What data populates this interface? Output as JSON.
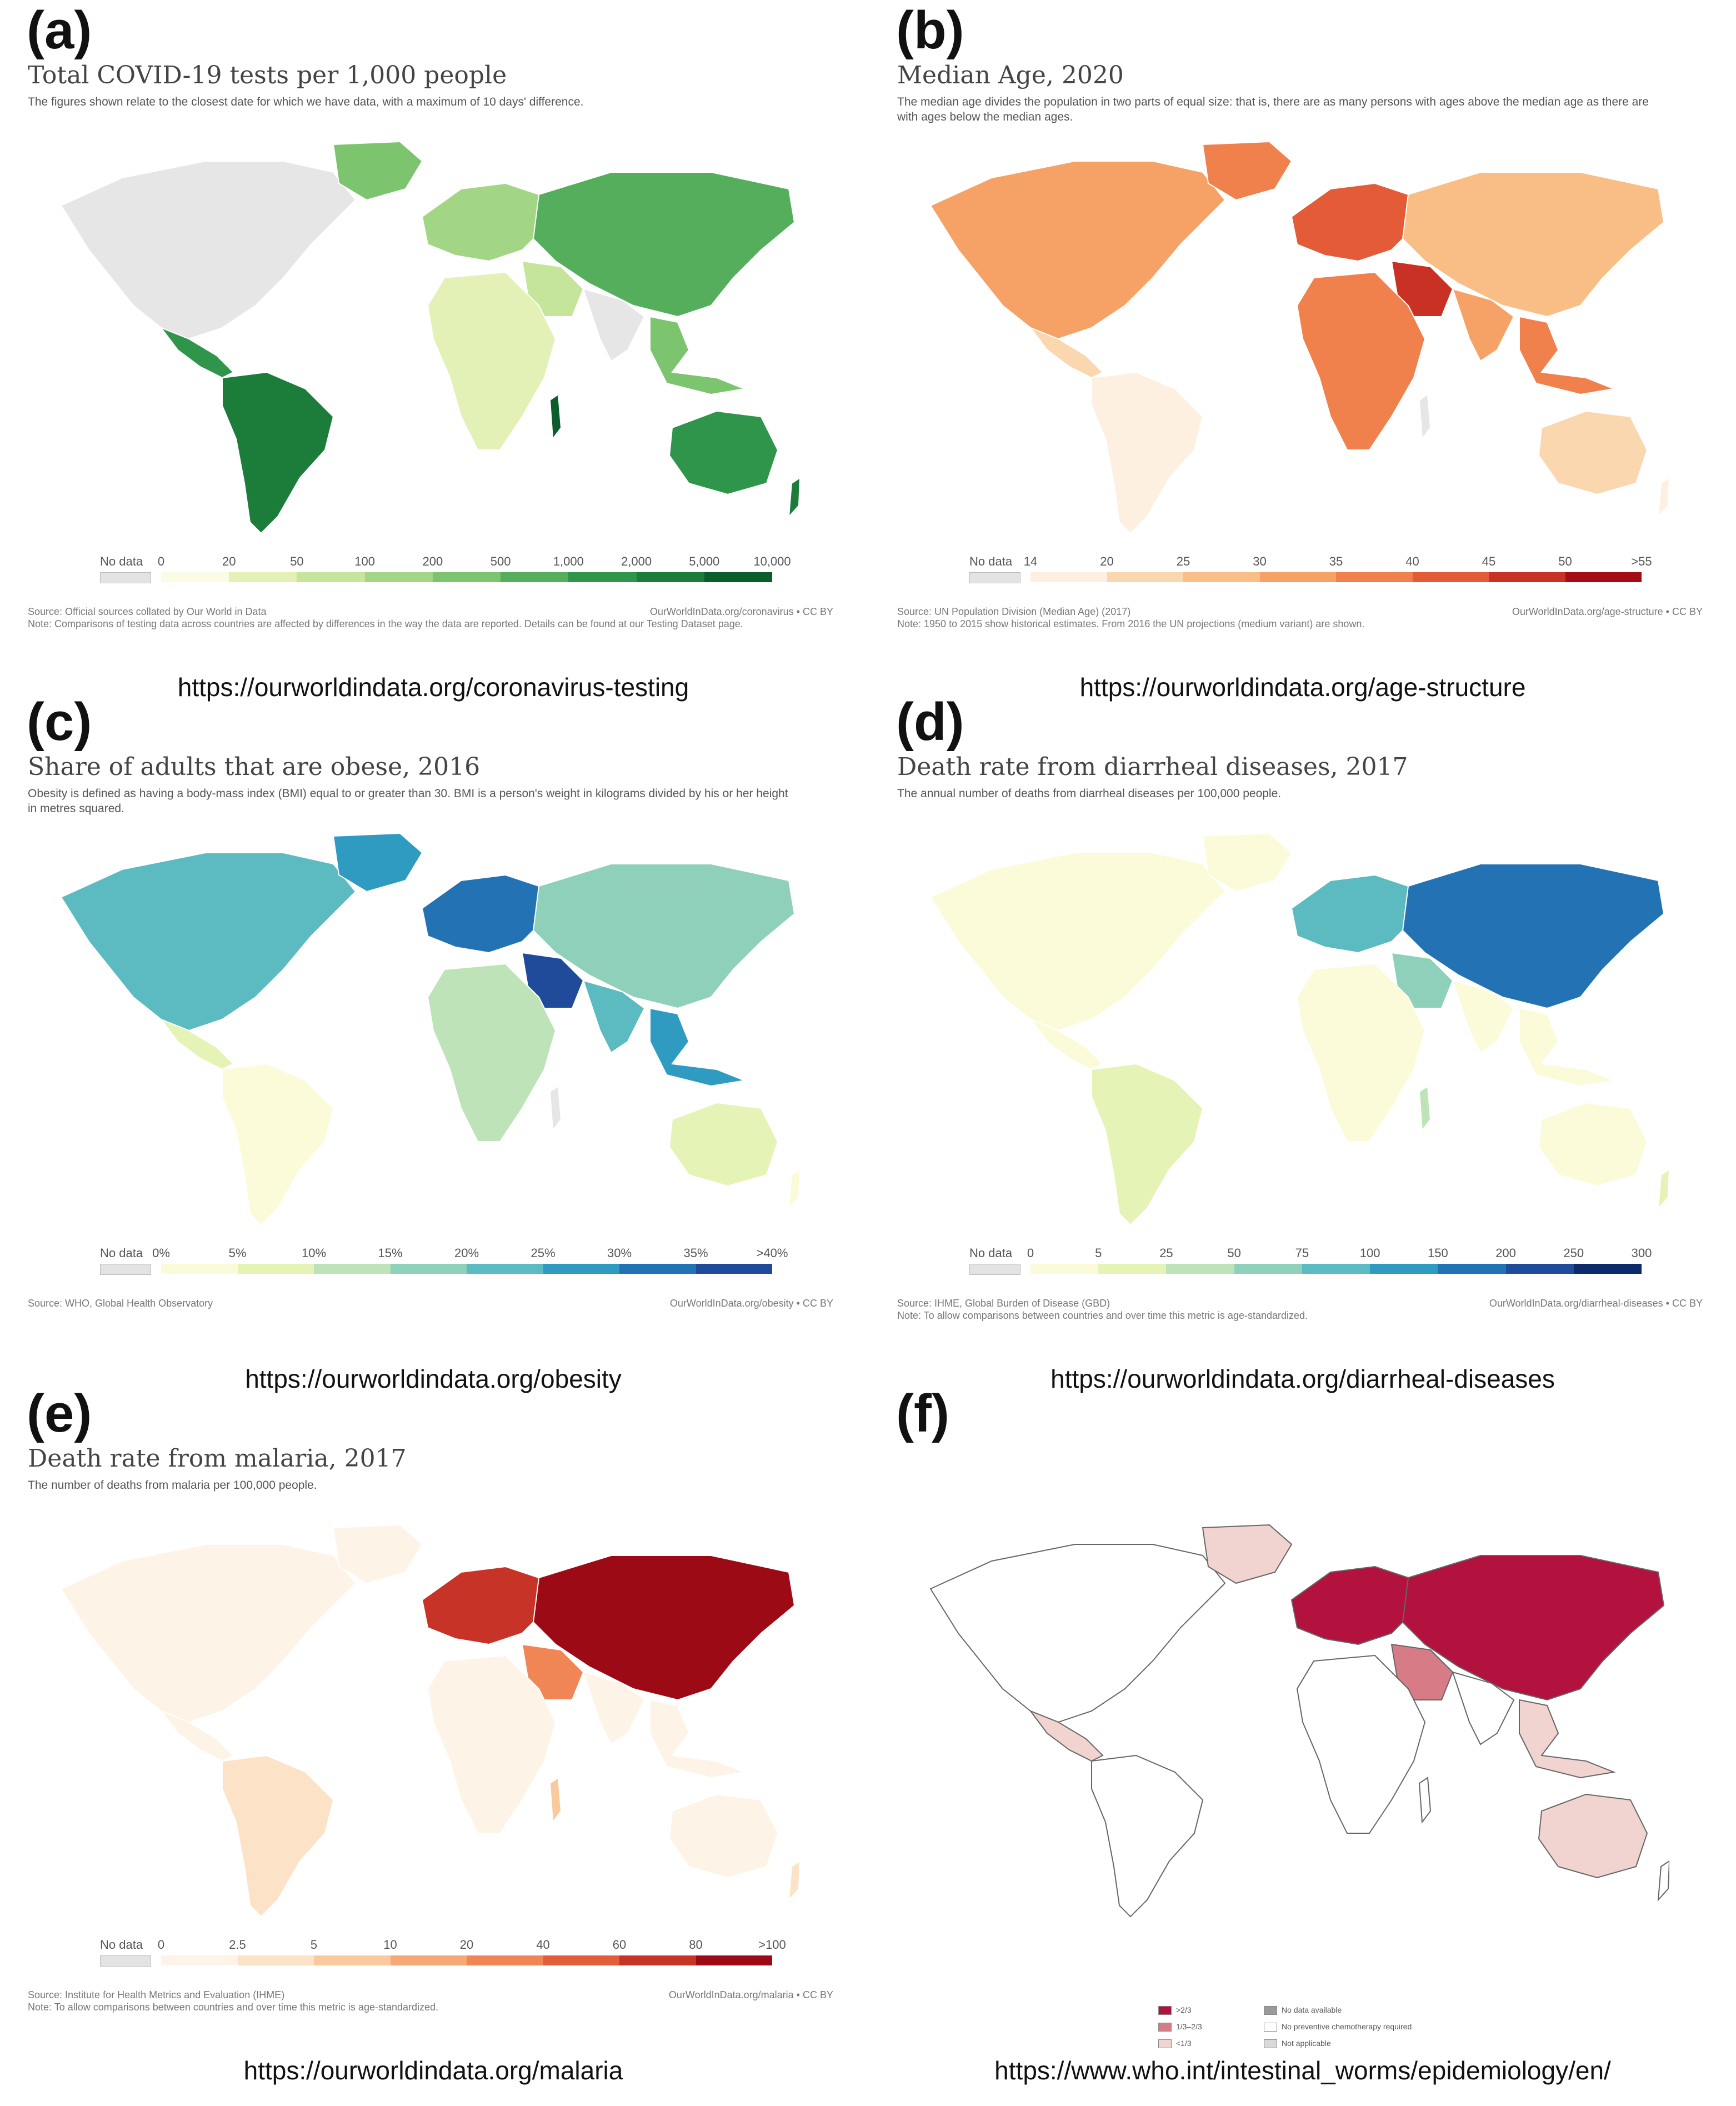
{
  "panels": [
    {
      "label": "(a)",
      "title": "Total COVID-19 tests per 1,000 people",
      "subtitle": "The figures shown relate to the closest date for which we have data, with a maximum of 10 days' difference.",
      "legend": {
        "no_data": "No data",
        "ticks": [
          "0",
          "20",
          "50",
          "100",
          "200",
          "500",
          "1,000",
          "2,000",
          "5,000",
          "10,000"
        ],
        "colors": [
          "#fbfbe6",
          "#e3f1b6",
          "#c5e59a",
          "#a2d584",
          "#7cc46d",
          "#55ae5c",
          "#2f954b",
          "#1c7c3a",
          "#0b5e2b"
        ]
      },
      "source_lines": [
        "Source: Official sources collated by Our World in Data",
        "Note: Comparisons of testing data across countries are affected by differences in the way the data are reported. Details can be found at our Testing Dataset page."
      ],
      "source_right": "OurWorldInData.org/coronavirus • CC BY",
      "url": "https://ourworldindata.org/coronavirus-testing",
      "palette": [
        "#e6e6e6",
        "#7cc46d",
        "#2f954b",
        "#1c7c3a",
        "#a2d584",
        "#55ae5c",
        "#c5e59a",
        "#e3f1b6",
        "#0b5e2b"
      ]
    },
    {
      "label": "(b)",
      "title": "Median Age, 2020",
      "subtitle": "The median age divides the population in two parts of equal size: that is, there are as many persons with ages above the median age as there are with ages below the median ages.",
      "legend": {
        "no_data": "No data",
        "ticks": [
          "14",
          "20",
          "25",
          "30",
          "35",
          "40",
          "45",
          "50",
          ">55"
        ],
        "colors": [
          "#fdf0e0",
          "#fbd7b0",
          "#f9be86",
          "#f6a266",
          "#f0804c",
          "#e35c37",
          "#c93125",
          "#a40d16"
        ]
      },
      "source_lines": [
        "Source: UN Population Division (Median Age) (2017)",
        "Note: 1950 to 2015 show historical estimates. From 2016 the UN projections (medium variant) are shown."
      ],
      "source_right": "OurWorldInData.org/age-structure • CC BY",
      "url": "https://ourworldindata.org/age-structure",
      "palette": [
        "#f6a266",
        "#f0804c",
        "#fbd7b0",
        "#fdf0e0",
        "#e35c37",
        "#f9be86",
        "#c93125",
        "#f0804c",
        "#e6e6e6"
      ]
    },
    {
      "label": "(c)",
      "title": "Share of adults that are obese, 2016",
      "subtitle": "Obesity is defined as having a body-mass index (BMI) equal to or greater than 30. BMI is a person's weight in kilograms divided by his or her height in metres squared.",
      "legend": {
        "no_data": "No data",
        "ticks": [
          "0%",
          "5%",
          "10%",
          "15%",
          "20%",
          "25%",
          "30%",
          "35%",
          ">40%"
        ],
        "colors": [
          "#fbfbd9",
          "#e6f3b6",
          "#bfe3b8",
          "#8fd0bb",
          "#5cbac1",
          "#2f9bc1",
          "#2372b3",
          "#1f4b9a"
        ]
      },
      "source_lines": [
        "Source: WHO, Global Health Observatory"
      ],
      "source_right": "OurWorldInData.org/obesity • CC BY",
      "url": "https://ourworldindata.org/obesity",
      "palette": [
        "#5cbac1",
        "#2f9bc1",
        "#e6f3b6",
        "#fbfbd9",
        "#2372b3",
        "#8fd0bb",
        "#1f4b9a",
        "#bfe3b8",
        "#e6e6e6"
      ]
    },
    {
      "label": "(d)",
      "title": "Death rate from diarrheal diseases, 2017",
      "subtitle": "The annual number of deaths from diarrheal diseases per 100,000 people.",
      "legend": {
        "no_data": "No data",
        "ticks": [
          "0",
          "5",
          "25",
          "50",
          "75",
          "100",
          "150",
          "200",
          "250",
          "300"
        ],
        "colors": [
          "#fbfbd9",
          "#e6f3b6",
          "#bfe3b8",
          "#8fd0bb",
          "#5cbac1",
          "#2f9bc1",
          "#2372b3",
          "#1f4b9a",
          "#0d2a6b"
        ]
      },
      "source_lines": [
        "Source: IHME, Global Burden of Disease (GBD)",
        "Note: To allow comparisons between countries and over time this metric is age-standardized."
      ],
      "source_right": "OurWorldInData.org/diarrheal-diseases • CC BY",
      "url": "https://ourworldindata.org/diarrheal-diseases",
      "palette": [
        "#fbfbd9",
        "#fbfbd9",
        "#fbfbd9",
        "#e6f3b6",
        "#5cbac1",
        "#2372b3",
        "#8fd0bb",
        "#fbfbd9",
        "#bfe3b8"
      ]
    },
    {
      "label": "(e)",
      "title": "Death rate from malaria, 2017",
      "subtitle": "The number of deaths from malaria per 100,000 people.",
      "legend": {
        "no_data": "No data",
        "ticks": [
          "0",
          "2.5",
          "5",
          "10",
          "20",
          "40",
          "60",
          "80",
          ">100"
        ],
        "colors": [
          "#fdf3e6",
          "#fce3c8",
          "#fac99e",
          "#f7a877",
          "#f08556",
          "#e25e3a",
          "#c73326",
          "#9c0a15"
        ]
      },
      "source_lines": [
        "Source: Institute for Health Metrics and Evaluation (IHME)",
        "Note: To allow comparisons between countries and over time this metric is age-standardized."
      ],
      "source_right": "OurWorldInData.org/malaria • CC BY",
      "url": "https://ourworldindata.org/malaria",
      "palette": [
        "#fdf3e6",
        "#fdf3e6",
        "#fdf3e6",
        "#fce3c8",
        "#c73326",
        "#9c0a15",
        "#f08556",
        "#fdf3e6",
        "#fac99e"
      ]
    },
    {
      "label": "(f)",
      "title": "",
      "subtitle": "",
      "who_legend": [
        {
          "label": ">2/3",
          "color": "#b3123f"
        },
        {
          "label": "1/3–2/3",
          "color": "#d77b86"
        },
        {
          "label": "<1/3",
          "color": "#f1d3d0"
        },
        {
          "label": "No data available",
          "color": "#9a9a9a"
        },
        {
          "label": "No preventive chemotherapy required",
          "color": "#ffffff"
        },
        {
          "label": "Not applicable",
          "color": "#d9d9d9"
        }
      ],
      "url": "https://www.who.int/intestinal_worms/epidemiology/en/",
      "palette": [
        "#ffffff",
        "#f1d3d0",
        "#f1d3d0",
        "#ffffff",
        "#b3123f",
        "#b3123f",
        "#d77b86",
        "#ffffff",
        "#ffffff"
      ]
    }
  ]
}
